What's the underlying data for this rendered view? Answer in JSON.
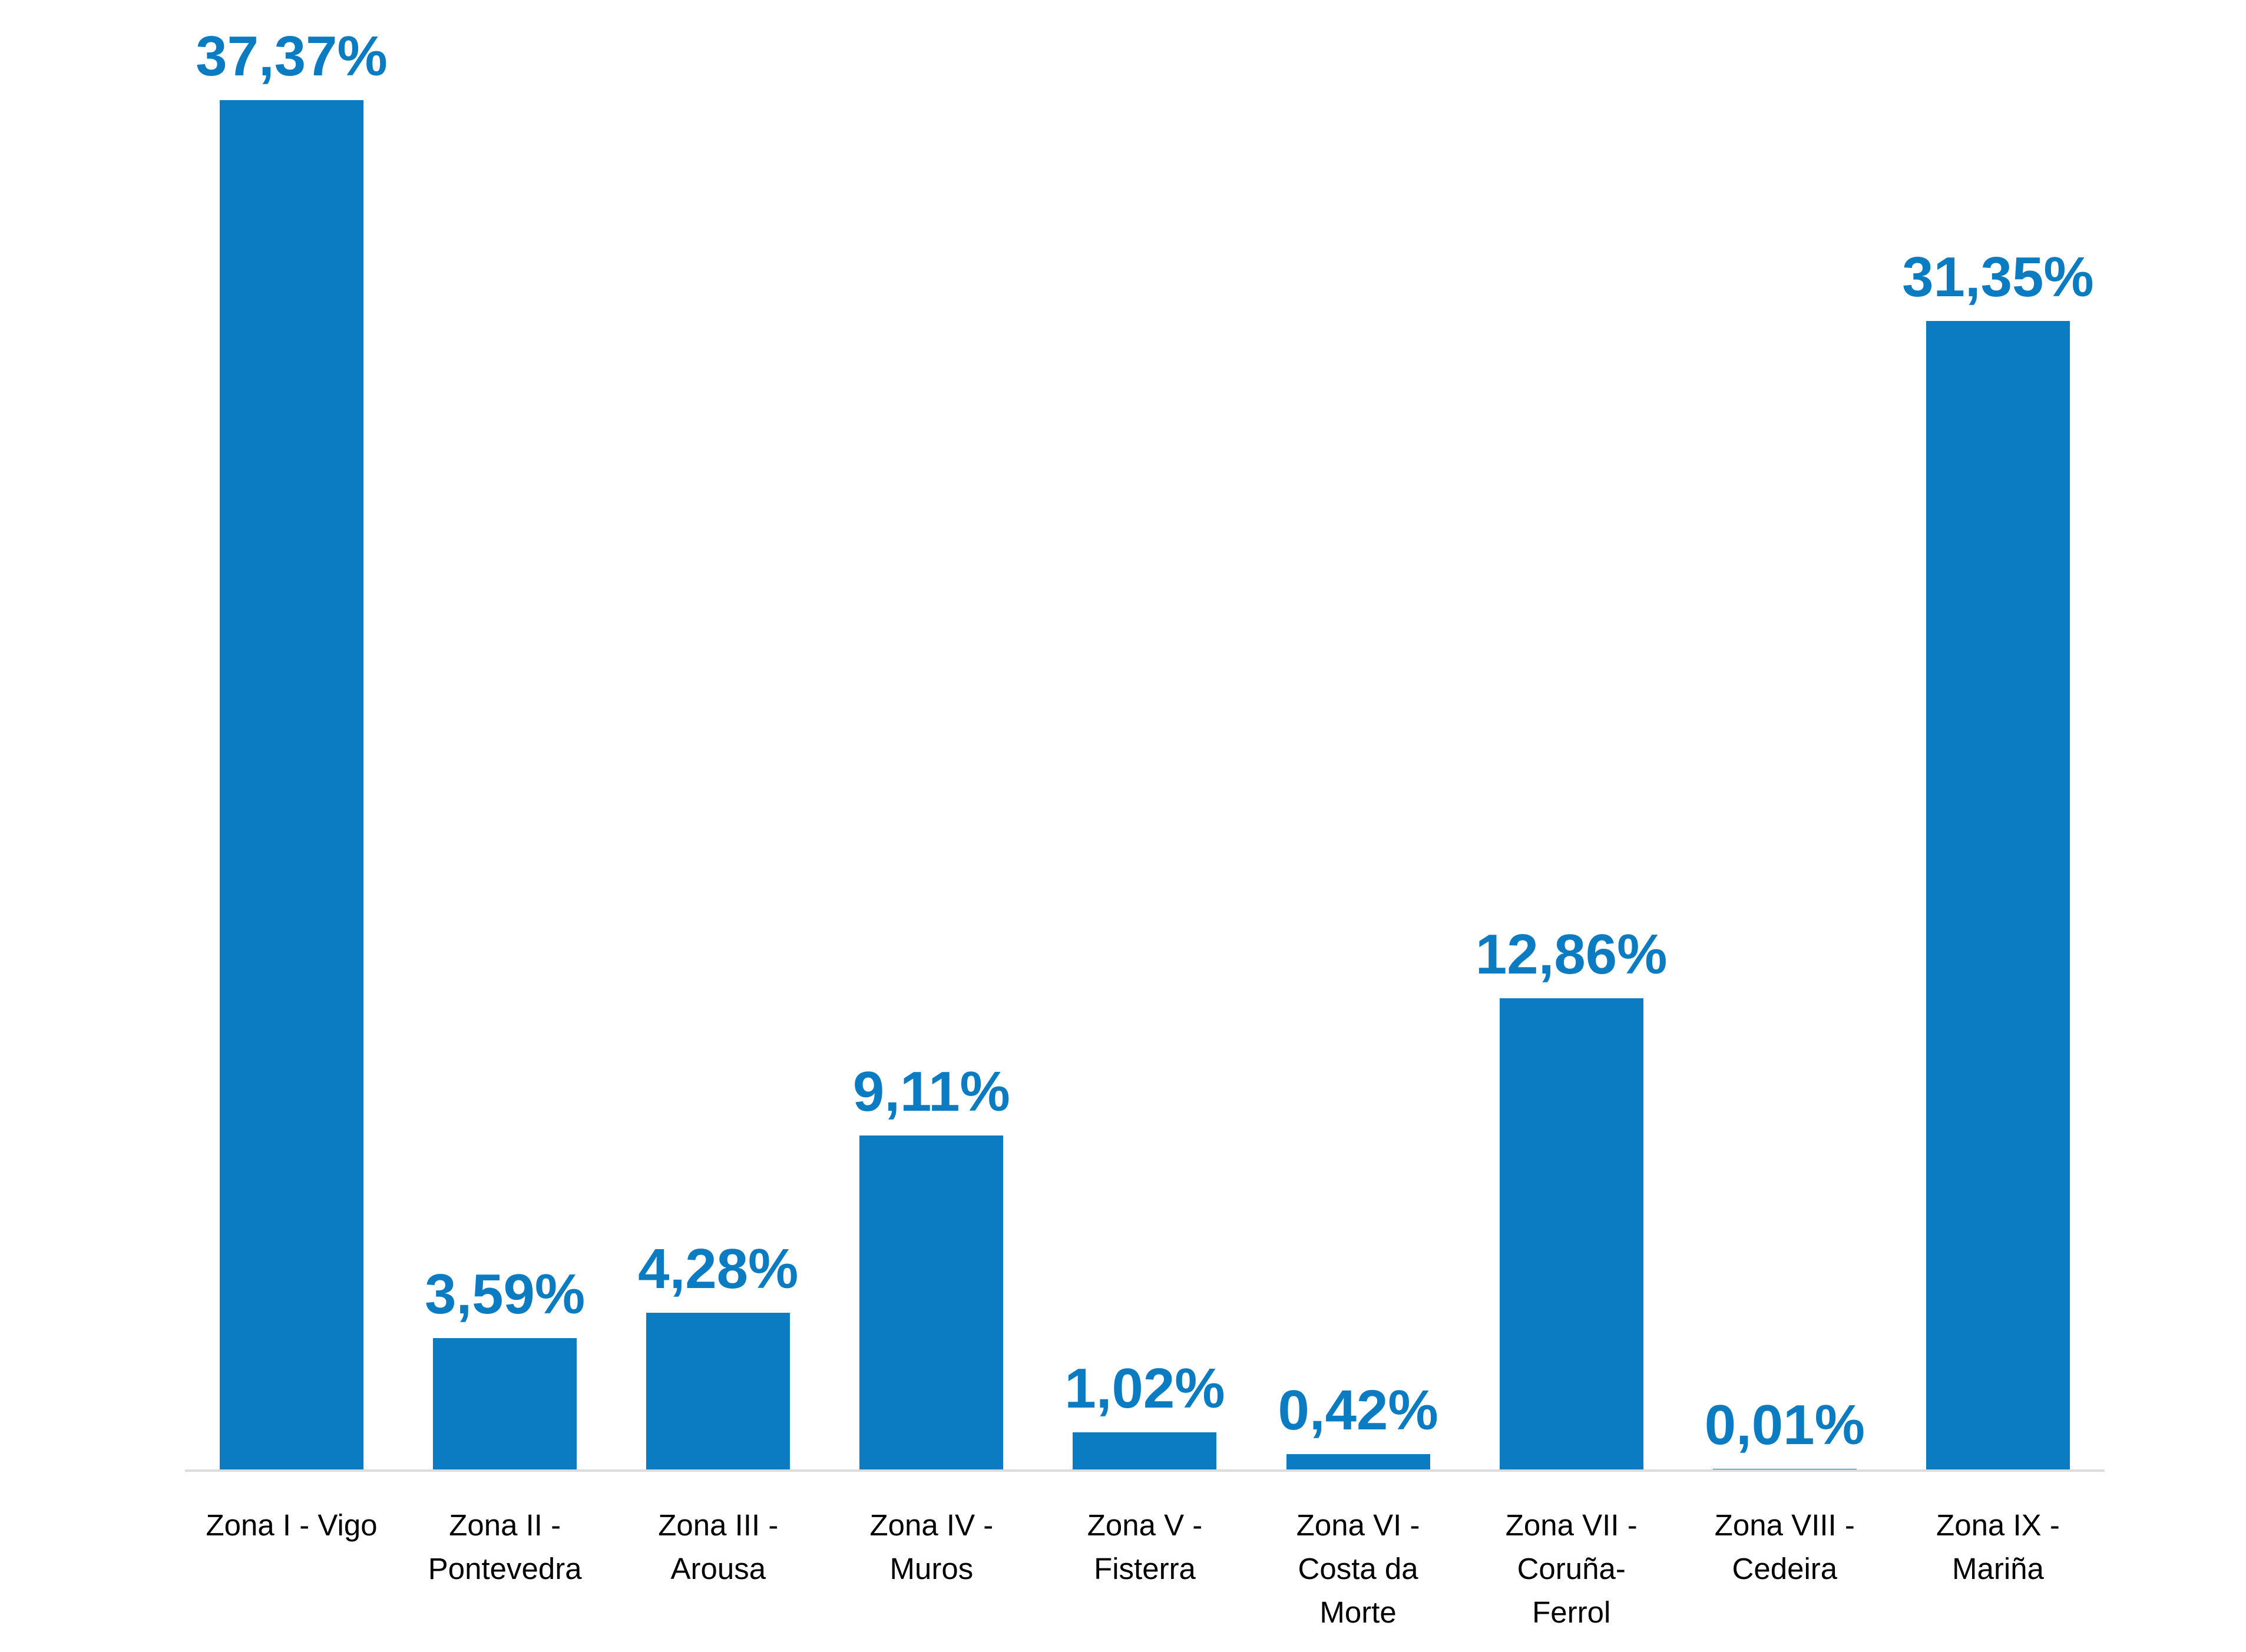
{
  "chart_data": {
    "type": "bar",
    "categories": [
      "Zona I - Vigo",
      "Zona II - Pontevedra",
      "Zona III - Arousa",
      "Zona IV - Muros",
      "Zona V - Fisterra",
      "Zona VI - Costa da Morte",
      "Zona VII - Coruña-Ferrol",
      "Zona VIII - Cedeira",
      "Zona IX - Mariña"
    ],
    "categories_display": [
      "Zona I - Vigo",
      "Zona II -\nPontevedra",
      "Zona III -\nArousa",
      "Zona IV -\nMuros",
      "Zona V -\nFisterra",
      "Zona VI -\nCosta da\nMorte",
      "Zona VII -\nCoruña-\nFerrol",
      "Zona VIII -\nCedeira",
      "Zona IX -\nMariña"
    ],
    "values": [
      37.37,
      3.59,
      4.28,
      9.11,
      1.02,
      0.42,
      12.86,
      0.01,
      31.35
    ],
    "value_labels": [
      "37,37%",
      "3,59%",
      "4,28%",
      "9,11%",
      "1,02%",
      "0,42%",
      "12,86%",
      "0,01%",
      "31,35%"
    ],
    "title": "",
    "xlabel": "",
    "ylabel": "",
    "ylim": [
      0,
      40
    ],
    "grid": false,
    "legend": false,
    "bar_color": "#0b7cc2",
    "value_label_color": "#0b7cc2",
    "category_label_color": "#000000",
    "axis_line_color": "#dcdcdc",
    "background_color": "#ffffff"
  }
}
